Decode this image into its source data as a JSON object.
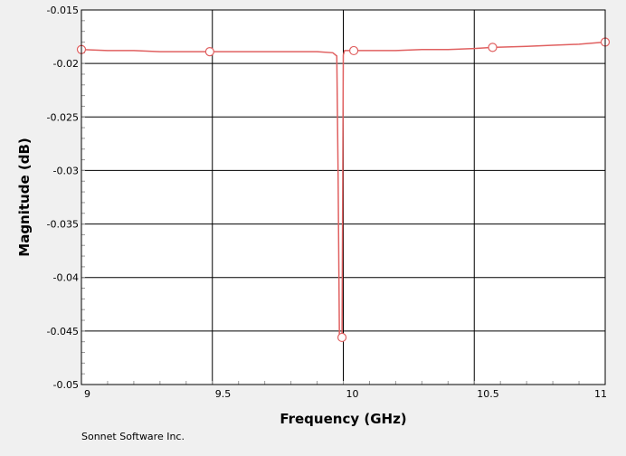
{
  "footer": {
    "text": "Sonnet Software Inc."
  },
  "colors": {
    "background": "#f0f0f0",
    "plot_bg": "#ffffff",
    "series": "#e06060",
    "grid": "#000000",
    "minor_tick": "#9a9a9a"
  },
  "chart_data": {
    "type": "line",
    "title": "",
    "xlabel": "Frequency (GHz)",
    "ylabel": "Magnitude (dB)",
    "xlim": [
      9,
      11
    ],
    "ylim": [
      -0.05,
      -0.015
    ],
    "x_ticks": [
      9,
      9.5,
      10,
      10.5,
      11
    ],
    "x_tick_labels": [
      "9",
      "9.5",
      "10",
      "10.5",
      "11"
    ],
    "y_ticks": [
      -0.015,
      -0.02,
      -0.025,
      -0.03,
      -0.035,
      -0.04,
      -0.045,
      -0.05
    ],
    "y_tick_labels": [
      "-0.015",
      "-0.02",
      "-0.025",
      "-0.03",
      "-0.035",
      "-0.04",
      "-0.045",
      "-0.05"
    ],
    "grid": true,
    "series": [
      {
        "x": [
          9.0,
          9.1,
          9.2,
          9.3,
          9.4,
          9.5,
          9.6,
          9.7,
          9.8,
          9.9,
          9.96,
          9.975,
          9.98,
          9.985,
          9.99,
          9.995,
          10.0,
          10.005,
          10.04,
          10.1,
          10.2,
          10.3,
          10.4,
          10.5,
          10.57,
          10.7,
          10.8,
          10.9,
          11.0
        ],
        "y": [
          -0.0187,
          -0.0188,
          -0.0188,
          -0.0189,
          -0.0189,
          -0.0189,
          -0.0189,
          -0.0189,
          -0.0189,
          -0.0189,
          -0.019,
          -0.0193,
          -0.03,
          -0.0455,
          -0.0456,
          -0.0455,
          -0.0192,
          -0.0188,
          -0.0188,
          -0.0188,
          -0.0188,
          -0.0187,
          -0.0187,
          -0.0186,
          -0.0185,
          -0.0184,
          -0.0183,
          -0.0182,
          -0.018
        ]
      }
    ],
    "markers": [
      {
        "x": 9.0,
        "y": -0.0187
      },
      {
        "x": 9.49,
        "y": -0.0189
      },
      {
        "x": 9.995,
        "y": -0.0456
      },
      {
        "x": 10.04,
        "y": -0.0188
      },
      {
        "x": 10.57,
        "y": -0.0185
      },
      {
        "x": 11.0,
        "y": -0.018
      }
    ]
  }
}
